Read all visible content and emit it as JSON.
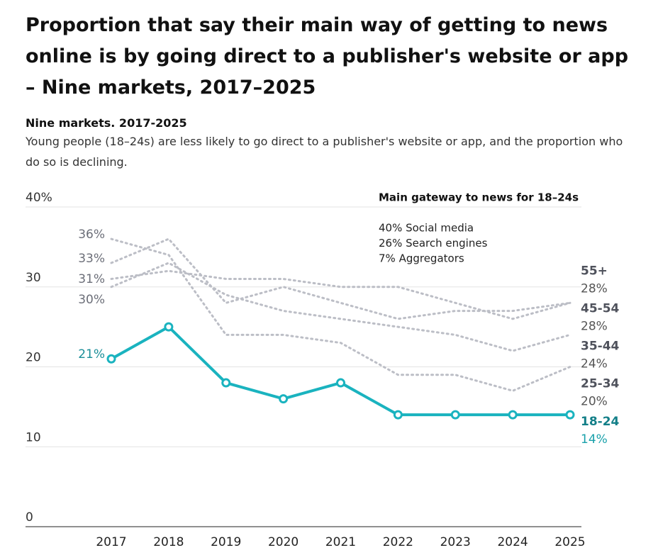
{
  "chart_data": {
    "type": "line",
    "title": "Proportion that say their main way of getting to news online is by going direct to a publisher's website or app – Nine markets, 2017–2025",
    "subtitle": "Nine markets. 2017-2025",
    "description": "Young people (18–24s) are less likely to go direct to a publisher's website or app, and the proportion who do so is declining.",
    "annotation": {
      "title": "Main gateway to news for 18–24s",
      "lines": [
        "40% Social media",
        "26% Search engines",
        "7% Aggregators"
      ]
    },
    "categories": [
      "2017",
      "2018",
      "2019",
      "2020",
      "2021",
      "2022",
      "2023",
      "2024",
      "2025"
    ],
    "ylim": [
      0,
      40
    ],
    "yticks": [
      0,
      10,
      20,
      30,
      {
        "value": 40,
        "label": "40%"
      }
    ],
    "grid": true,
    "series": [
      {
        "name": "55+",
        "color": "#bcbec6",
        "dashed": true,
        "markers": false,
        "values": [
          31,
          32,
          31,
          31,
          30,
          30,
          28,
          26,
          28
        ],
        "value_labels": [
          "31%",
          null,
          null,
          null,
          null,
          null,
          null,
          null,
          "28%"
        ]
      },
      {
        "name": "45-54",
        "color": "#bcbec6",
        "dashed": true,
        "markers": false,
        "values": [
          33,
          36,
          28,
          30,
          28,
          26,
          27,
          27,
          28
        ],
        "value_labels": [
          "33%",
          null,
          null,
          null,
          null,
          null,
          null,
          null,
          "28%"
        ]
      },
      {
        "name": "35-44",
        "color": "#bcbec6",
        "dashed": true,
        "markers": false,
        "values": [
          30,
          33,
          29,
          27,
          26,
          25,
          24,
          22,
          24
        ],
        "value_labels": [
          "30%",
          null,
          null,
          null,
          null,
          null,
          null,
          null,
          "24%"
        ]
      },
      {
        "name": "25-34",
        "color": "#bcbec6",
        "dashed": true,
        "markers": false,
        "values": [
          36,
          34,
          24,
          24,
          23,
          19,
          19,
          17,
          20
        ],
        "value_labels": [
          "36%",
          null,
          null,
          null,
          null,
          null,
          null,
          null,
          "20%"
        ]
      },
      {
        "name": "18-24",
        "color": "#1ab3bf",
        "dashed": false,
        "markers": true,
        "values": [
          21,
          25,
          18,
          16,
          18,
          14,
          14,
          14,
          14
        ],
        "value_labels": [
          "21%",
          null,
          null,
          null,
          null,
          null,
          null,
          null,
          "14%"
        ]
      }
    ]
  }
}
